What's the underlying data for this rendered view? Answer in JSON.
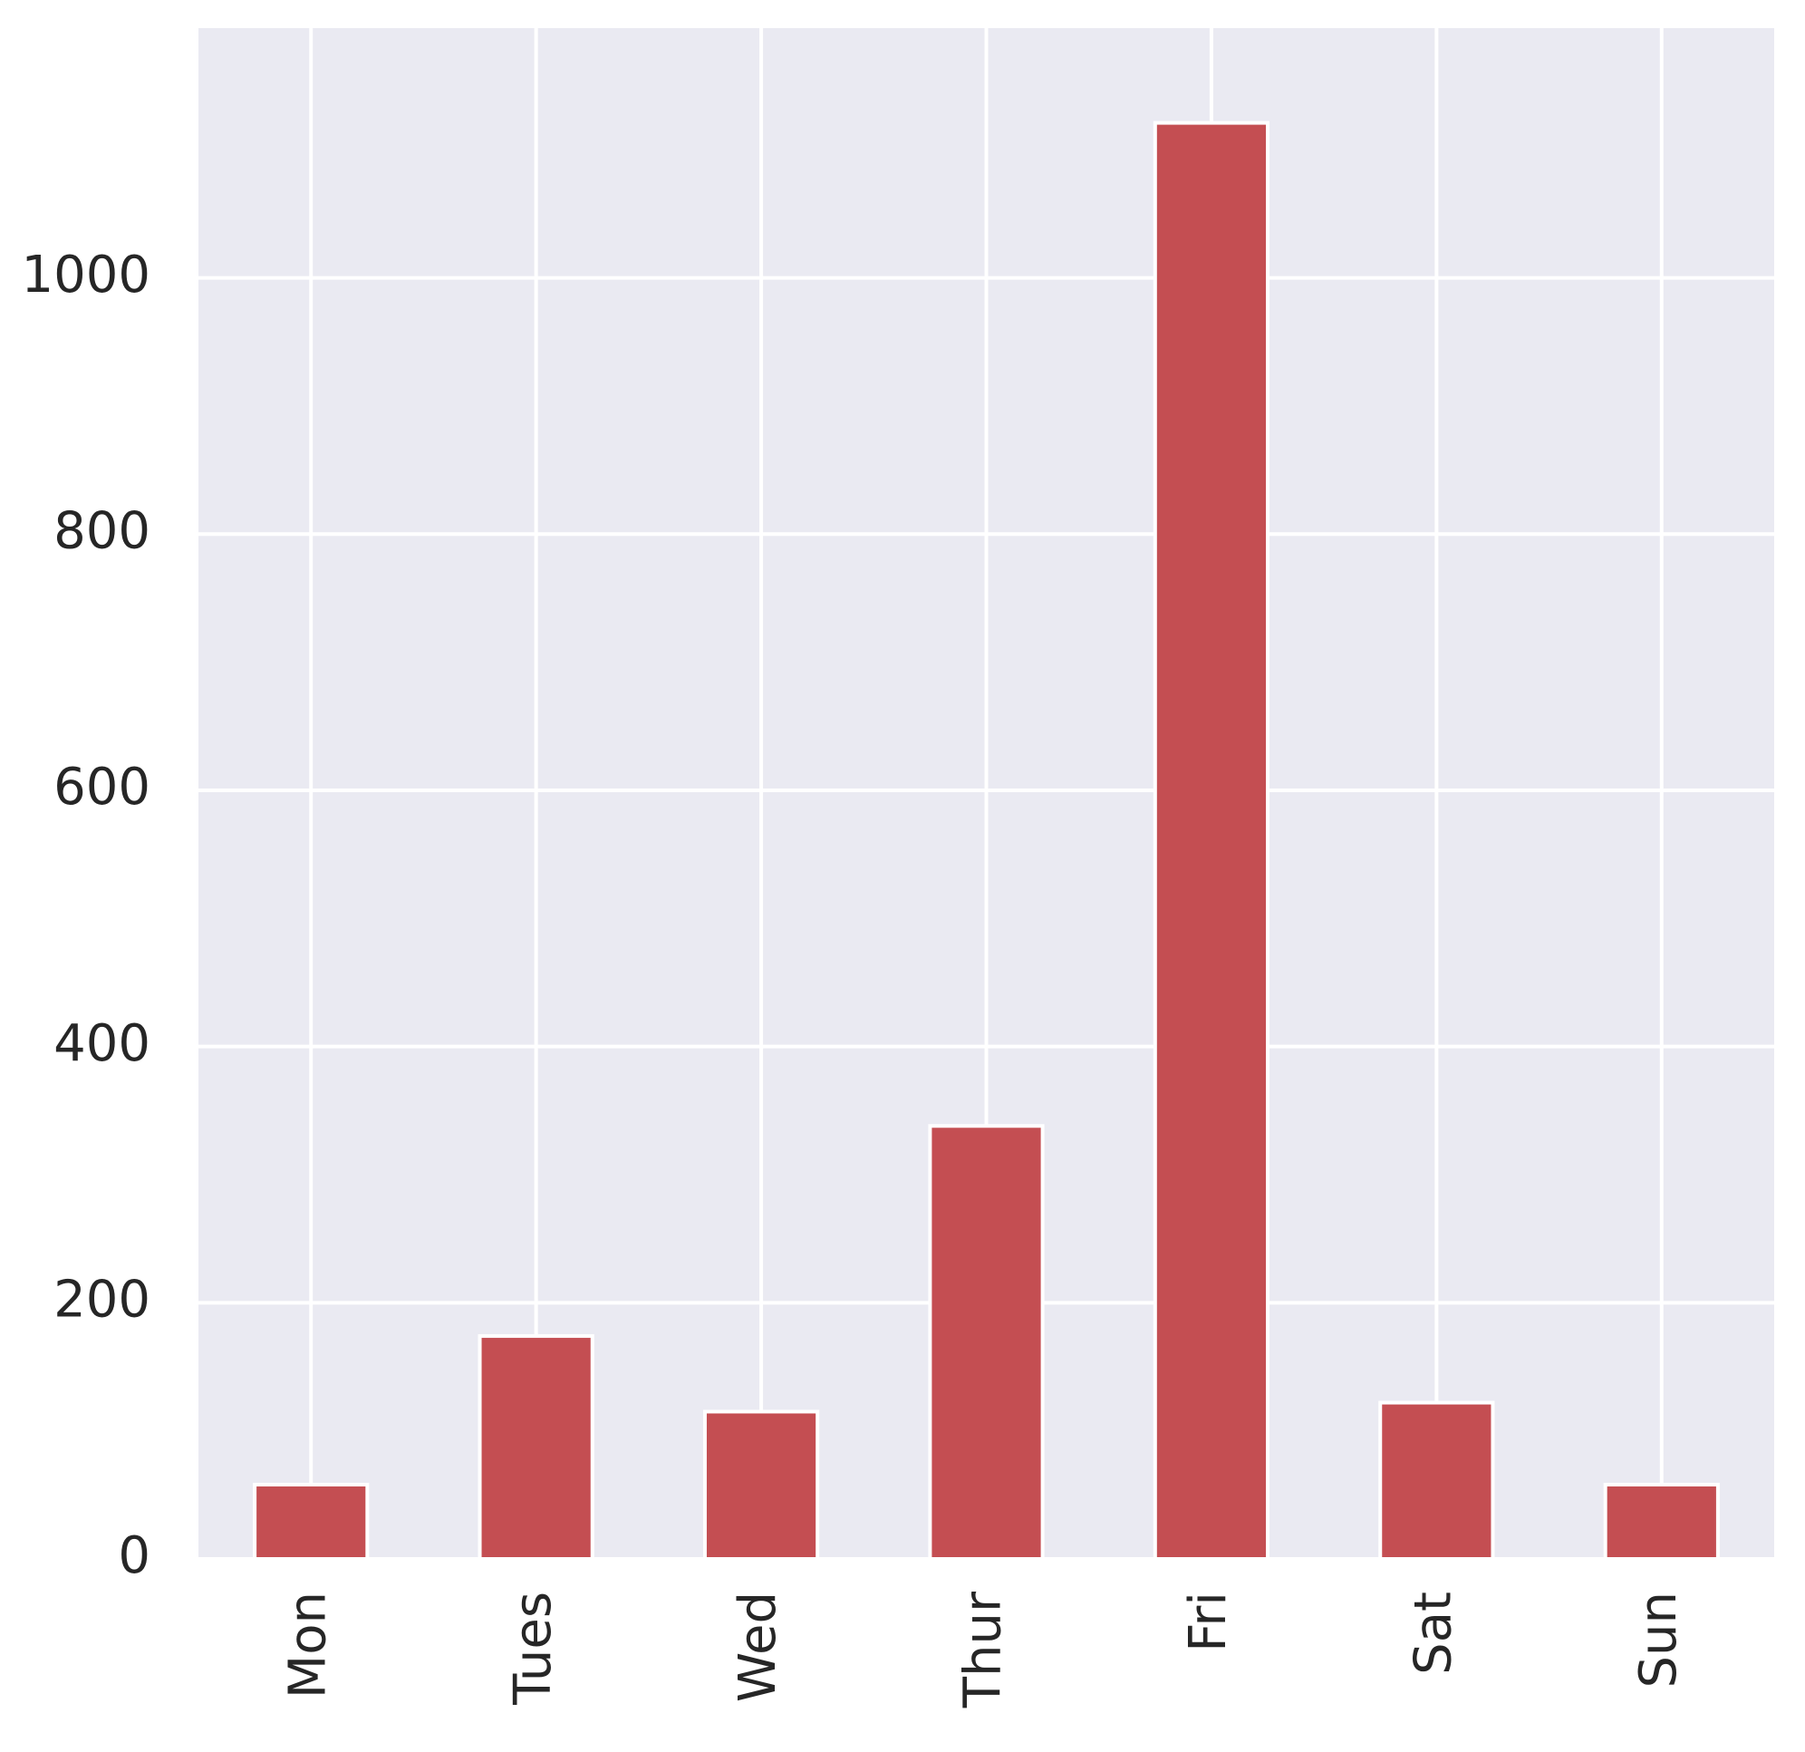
{
  "chart_data": {
    "type": "bar",
    "title": "",
    "xlabel": "",
    "ylabel": "",
    "categories": [
      "Mon",
      "Tues",
      "Wed",
      "Thur",
      "Fri",
      "Sat",
      "Sun"
    ],
    "values": [
      58,
      174,
      115,
      338,
      1121,
      122,
      58
    ],
    "ylim": [
      0,
      1195
    ],
    "yticks": [
      0,
      200,
      400,
      600,
      800,
      1000
    ],
    "grid": true,
    "legend": "none",
    "colors": {
      "bar": "#C44E52",
      "background": "#EAEAF2",
      "grid": "#FFFFFF",
      "text": "#262626"
    }
  }
}
